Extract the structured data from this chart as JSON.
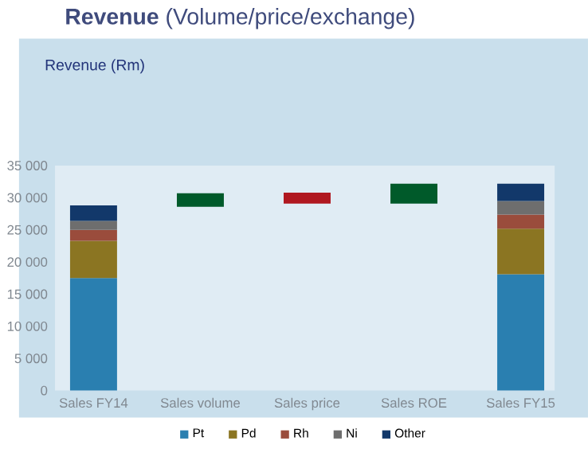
{
  "chart_data": {
    "type": "bar",
    "title": "**Revenue** (Volume/price/exchange)",
    "subtitle": "Revenue (Rm)",
    "categories": [
      "Sales FY14",
      "Sales volume",
      "Sales price",
      "Sales ROE",
      "Sales FY15"
    ],
    "stacked": true,
    "series": [
      {
        "name": "Pt",
        "color": "#2a7fb0",
        "values": [
          17500,
          null,
          null,
          null,
          18100
        ]
      },
      {
        "name": "Pd",
        "color": "#8b7522",
        "values": [
          5800,
          null,
          null,
          null,
          7100
        ]
      },
      {
        "name": "Rh",
        "color": "#9a4c3c",
        "values": [
          1700,
          null,
          null,
          null,
          2200
        ]
      },
      {
        "name": "Ni",
        "color": "#6e6e6e",
        "values": [
          1400,
          null,
          null,
          null,
          2100
        ]
      },
      {
        "name": "Other",
        "color": "#12386a",
        "values": [
          2400,
          null,
          null,
          null,
          2700
        ]
      },
      {
        "colors": [
          null,
          "#005a2a",
          "#b01820",
          "#005a2a",
          null
        ],
        "values": [
          null,
          2100,
          -1700,
          3100,
          null
        ],
        "base": [
          null,
          28600,
          30800,
          29100,
          null
        ]
      }
    ],
    "ylim": [
      0,
      35000
    ],
    "yticks": [
      {
        "value": 0,
        "label": "0"
      },
      {
        "value": 5000,
        "label": "5 000"
      },
      {
        "value": 10000,
        "label": "10 000"
      },
      {
        "value": 15000,
        "label": "15 000"
      },
      {
        "value": 20000,
        "label": "20 000"
      },
      {
        "value": 25000,
        "label": "25 000"
      },
      {
        "value": 30000,
        "label": "30 000"
      },
      {
        "value": 35000,
        "label": "35 000"
      }
    ],
    "grid": false,
    "legend": "bottom"
  }
}
